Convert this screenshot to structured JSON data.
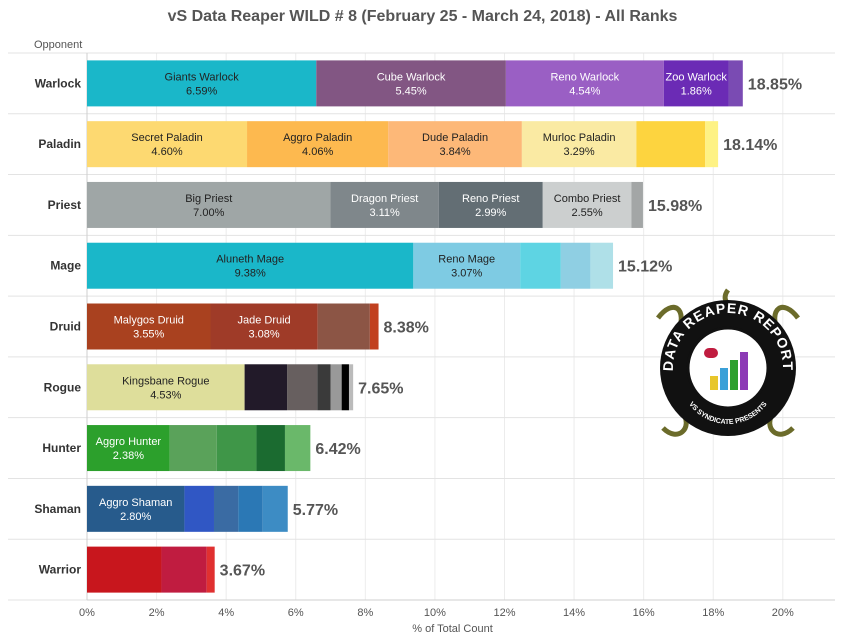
{
  "title": "vS Data Reaper WILD # 8 (February 25 - March 24, 2018) - All Ranks",
  "logo": {
    "text": "DATA REAPER REPORT",
    "subtext": "VS SYNDICATE PRESENTS"
  },
  "chart_data": {
    "type": "bar",
    "orientation": "horizontal",
    "stacked": true,
    "title": "vS Data Reaper WILD # 8 (February 25 - March 24, 2018) - All Ranks",
    "ylabel": "Opponent",
    "xlabel": "% of Total Count",
    "xlim": [
      0,
      21.5
    ],
    "xticks": [
      "0%",
      "2%",
      "4%",
      "6%",
      "8%",
      "10%",
      "12%",
      "14%",
      "16%",
      "18%",
      "20%"
    ],
    "grid": true,
    "categories": [
      {
        "name": "Warlock",
        "total": "18.85%",
        "segments": [
          {
            "label": "Giants Warlock",
            "value": 6.59,
            "value_label": "6.59%",
            "color": "#1ab7c9"
          },
          {
            "label": "Cube Warlock",
            "value": 5.45,
            "value_label": "5.45%",
            "color": "#825683"
          },
          {
            "label": "Reno Warlock",
            "value": 4.54,
            "value_label": "4.54%",
            "color": "#9a5fc4"
          },
          {
            "label": "Zoo Warlock",
            "value": 1.86,
            "value_label": "1.86%",
            "color": "#6b2bb5"
          },
          {
            "label": "",
            "value": 0.41,
            "value_label": "",
            "color": "#7a4bb3"
          }
        ]
      },
      {
        "name": "Paladin",
        "total": "18.14%",
        "segments": [
          {
            "label": "Secret Paladin",
            "value": 4.6,
            "value_label": "4.60%",
            "color": "#fdd971"
          },
          {
            "label": "Aggro Paladin",
            "value": 4.06,
            "value_label": "4.06%",
            "color": "#fdb94f"
          },
          {
            "label": "Dude Paladin",
            "value": 3.84,
            "value_label": "3.84%",
            "color": "#fdb878"
          },
          {
            "label": "Murloc Paladin",
            "value": 3.29,
            "value_label": "3.29%",
            "color": "#faeaa3"
          },
          {
            "label": "",
            "value": 1.98,
            "value_label": "",
            "color": "#fdd43f"
          },
          {
            "label": "",
            "value": 0.37,
            "value_label": "",
            "color": "#fef284"
          }
        ]
      },
      {
        "name": "Priest",
        "total": "15.98%",
        "segments": [
          {
            "label": "Big Priest",
            "value": 7.0,
            "value_label": "7.00%",
            "color": "#9fa6a6"
          },
          {
            "label": "Dragon Priest",
            "value": 3.11,
            "value_label": "3.11%",
            "color": "#7f878b"
          },
          {
            "label": "Reno Priest",
            "value": 2.99,
            "value_label": "2.99%",
            "color": "#636e74"
          },
          {
            "label": "Combo Priest",
            "value": 2.55,
            "value_label": "2.55%",
            "color": "#cccfcf"
          },
          {
            "label": "",
            "value": 0.33,
            "value_label": "",
            "color": "#a3a6a6"
          }
        ]
      },
      {
        "name": "Mage",
        "total": "15.12%",
        "segments": [
          {
            "label": "Aluneth Mage",
            "value": 9.38,
            "value_label": "9.38%",
            "color": "#1ab7c9"
          },
          {
            "label": "Reno Mage",
            "value": 3.07,
            "value_label": "3.07%",
            "color": "#7ecbe3"
          },
          {
            "label": "",
            "value": 1.17,
            "value_label": "",
            "color": "#5ed4e3"
          },
          {
            "label": "",
            "value": 0.85,
            "value_label": "",
            "color": "#8fcfe3"
          },
          {
            "label": "",
            "value": 0.65,
            "value_label": "",
            "color": "#afe0e8"
          }
        ]
      },
      {
        "name": "Druid",
        "total": "8.38%",
        "segments": [
          {
            "label": "Malygos Druid",
            "value": 3.55,
            "value_label": "3.55%",
            "color": "#a9411f"
          },
          {
            "label": "Jade Druid",
            "value": 3.08,
            "value_label": "3.08%",
            "color": "#9f3b28"
          },
          {
            "label": "",
            "value": 1.5,
            "value_label": "",
            "color": "#8c5545"
          },
          {
            "label": "",
            "value": 0.25,
            "value_label": "",
            "color": "#c1401f"
          }
        ]
      },
      {
        "name": "Rogue",
        "total": "7.65%",
        "segments": [
          {
            "label": "Kingsbane Rogue",
            "value": 4.53,
            "value_label": "4.53%",
            "color": "#dede9b"
          },
          {
            "label": "",
            "value": 1.22,
            "value_label": "",
            "color": "#221a29"
          },
          {
            "label": "",
            "value": 0.87,
            "value_label": "",
            "color": "#675f5f"
          },
          {
            "label": "",
            "value": 0.38,
            "value_label": "",
            "color": "#3a3a3a"
          },
          {
            "label": "",
            "value": 0.32,
            "value_label": "",
            "color": "#999999"
          },
          {
            "label": "",
            "value": 0.21,
            "value_label": "",
            "color": "#000000"
          },
          {
            "label": "",
            "value": 0.12,
            "value_label": "",
            "color": "#bbbbbb"
          }
        ]
      },
      {
        "name": "Hunter",
        "total": "6.42%",
        "segments": [
          {
            "label": "Aggro Hunter",
            "value": 2.38,
            "value_label": "2.38%",
            "color": "#2ca02c"
          },
          {
            "label": "",
            "value": 1.35,
            "value_label": "",
            "color": "#5aa25a"
          },
          {
            "label": "",
            "value": 1.14,
            "value_label": "",
            "color": "#3f9648"
          },
          {
            "label": "",
            "value": 0.82,
            "value_label": "",
            "color": "#1b6b30"
          },
          {
            "label": "",
            "value": 0.73,
            "value_label": "",
            "color": "#6ab86a"
          }
        ]
      },
      {
        "name": "Shaman",
        "total": "5.77%",
        "segments": [
          {
            "label": "Aggro Shaman",
            "value": 2.8,
            "value_label": "2.80%",
            "color": "#275b8c"
          },
          {
            "label": "",
            "value": 0.85,
            "value_label": "",
            "color": "#3057c4"
          },
          {
            "label": "",
            "value": 0.7,
            "value_label": "",
            "color": "#3a6ba3"
          },
          {
            "label": "",
            "value": 0.7,
            "value_label": "",
            "color": "#2b78b5"
          },
          {
            "label": "",
            "value": 0.72,
            "value_label": "",
            "color": "#3d8cc4"
          }
        ]
      },
      {
        "name": "Warrior",
        "total": "3.67%",
        "segments": [
          {
            "label": "",
            "value": 2.14,
            "value_label": "",
            "color": "#c8161d"
          },
          {
            "label": "",
            "value": 1.3,
            "value_label": "",
            "color": "#c01c40"
          },
          {
            "label": "",
            "value": 0.23,
            "value_label": "",
            "color": "#e03030"
          }
        ]
      }
    ]
  }
}
